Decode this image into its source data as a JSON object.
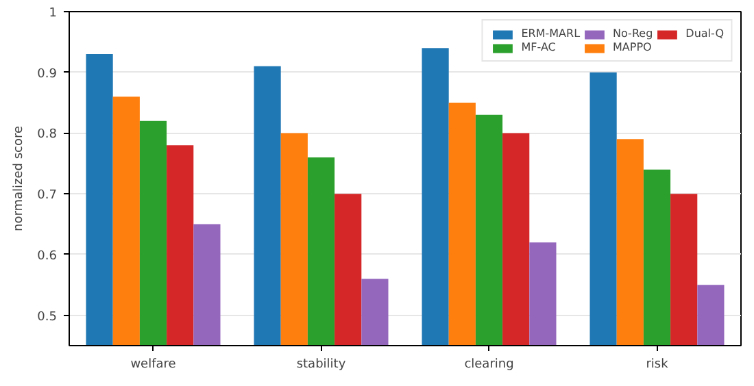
{
  "chart_data": {
    "type": "bar",
    "ylabel": "normalized score",
    "categories": [
      "welfare",
      "stability",
      "clearing",
      "risk"
    ],
    "series": [
      {
        "name": "ERM-MARL",
        "color": "#1f77b4",
        "values": [
          0.93,
          0.91,
          0.94,
          0.9
        ]
      },
      {
        "name": "MAPPO",
        "color": "#ff7f0e",
        "values": [
          0.86,
          0.8,
          0.85,
          0.79
        ]
      },
      {
        "name": "MF-AC",
        "color": "#2ca02c",
        "values": [
          0.82,
          0.76,
          0.83,
          0.74
        ]
      },
      {
        "name": "Dual-Q",
        "color": "#d62728",
        "values": [
          0.78,
          0.7,
          0.8,
          0.7
        ]
      },
      {
        "name": "No-Reg",
        "color": "#9467bd",
        "values": [
          0.65,
          0.56,
          0.62,
          0.55
        ]
      }
    ],
    "ylim": [
      0.45,
      1.0
    ],
    "yticks": [
      0.5,
      0.6,
      0.7,
      0.8,
      0.9,
      1.0
    ],
    "grid": "y",
    "legend": "top right"
  }
}
